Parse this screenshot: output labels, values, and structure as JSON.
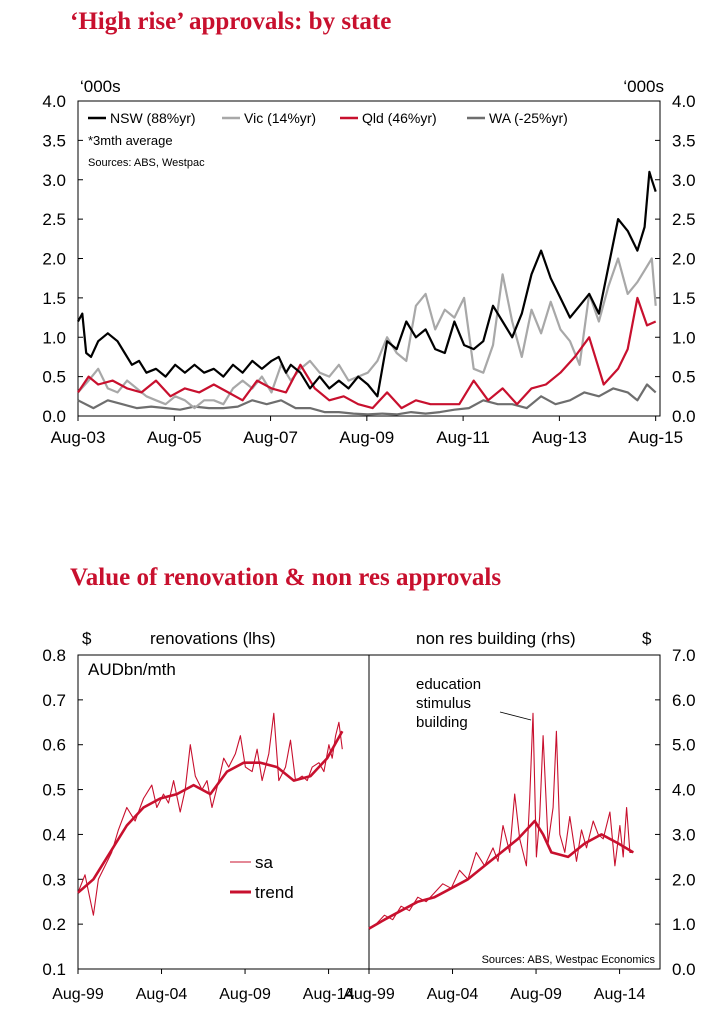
{
  "chart_data": [
    {
      "type": "line",
      "title": "‘High rise’ approvals: by state",
      "ylabel_left": "‘000s",
      "ylabel_right": "‘000s",
      "ylim": [
        0,
        4
      ],
      "yticks": [
        "0.0",
        "0.5",
        "1.0",
        "1.5",
        "2.0",
        "2.5",
        "3.0",
        "3.5",
        "4.0"
      ],
      "xticks": [
        "Aug-03",
        "Aug-05",
        "Aug-07",
        "Aug-09",
        "Aug-11",
        "Aug-13",
        "Aug-15"
      ],
      "xlim": [
        2003.58,
        2015.67
      ],
      "legend": [
        "NSW (88%yr)",
        "Vic (14%yr)",
        "Qld (46%yr)",
        "WA (-25%yr)"
      ],
      "note": "*3mth average",
      "source": "Sources: ABS, Westpac",
      "grid": false,
      "legend_position": "top-left",
      "series": [
        {
          "name": "NSW (88%yr)",
          "color": "#000000",
          "x": [
            2003.58,
            2003.67,
            2003.75,
            2003.85,
            2004.0,
            2004.2,
            2004.4,
            2004.55,
            2004.7,
            2004.85,
            2005.0,
            2005.2,
            2005.4,
            2005.6,
            2005.8,
            2006.0,
            2006.2,
            2006.4,
            2006.6,
            2006.8,
            2007.0,
            2007.2,
            2007.4,
            2007.6,
            2007.75,
            2007.9,
            2008.0,
            2008.2,
            2008.4,
            2008.6,
            2008.8,
            2009.0,
            2009.2,
            2009.4,
            2009.6,
            2009.8,
            2010.0,
            2010.2,
            2010.4,
            2010.6,
            2010.8,
            2011.0,
            2011.2,
            2011.4,
            2011.6,
            2011.8,
            2012.0,
            2012.2,
            2012.4,
            2012.6,
            2012.8,
            2013.0,
            2013.2,
            2013.4,
            2013.6,
            2013.8,
            2014.0,
            2014.2,
            2014.4,
            2014.6,
            2014.8,
            2015.0,
            2015.2,
            2015.35,
            2015.45,
            2015.5,
            2015.58
          ],
          "values": [
            1.2,
            1.3,
            0.8,
            0.75,
            0.95,
            1.05,
            0.95,
            0.8,
            0.65,
            0.7,
            0.55,
            0.6,
            0.5,
            0.65,
            0.55,
            0.65,
            0.55,
            0.6,
            0.5,
            0.65,
            0.55,
            0.7,
            0.6,
            0.7,
            0.75,
            0.55,
            0.65,
            0.55,
            0.35,
            0.5,
            0.35,
            0.45,
            0.35,
            0.5,
            0.4,
            0.25,
            0.95,
            0.85,
            1.2,
            1.0,
            1.1,
            0.85,
            0.8,
            1.2,
            0.9,
            0.85,
            0.95,
            1.4,
            1.2,
            1.0,
            1.3,
            1.8,
            2.1,
            1.75,
            1.5,
            1.25,
            1.4,
            1.55,
            1.3,
            1.9,
            2.5,
            2.35,
            2.1,
            2.4,
            3.1,
            3.0,
            2.85
          ]
        },
        {
          "name": "Vic (14%yr)",
          "color": "#a8a8a8",
          "x": [
            2003.58,
            2003.8,
            2004.0,
            2004.2,
            2004.4,
            2004.6,
            2004.8,
            2005.0,
            2005.2,
            2005.4,
            2005.6,
            2005.8,
            2006.0,
            2006.2,
            2006.4,
            2006.6,
            2006.8,
            2007.0,
            2007.2,
            2007.4,
            2007.6,
            2007.8,
            2008.0,
            2008.2,
            2008.4,
            2008.6,
            2008.8,
            2009.0,
            2009.2,
            2009.4,
            2009.6,
            2009.8,
            2010.0,
            2010.2,
            2010.4,
            2010.6,
            2010.8,
            2011.0,
            2011.2,
            2011.4,
            2011.6,
            2011.8,
            2012.0,
            2012.2,
            2012.4,
            2012.6,
            2012.8,
            2013.0,
            2013.2,
            2013.4,
            2013.6,
            2013.8,
            2014.0,
            2014.2,
            2014.4,
            2014.6,
            2014.8,
            2015.0,
            2015.2,
            2015.35,
            2015.5,
            2015.58
          ],
          "values": [
            0.3,
            0.45,
            0.6,
            0.35,
            0.3,
            0.45,
            0.35,
            0.25,
            0.2,
            0.15,
            0.25,
            0.2,
            0.1,
            0.2,
            0.2,
            0.15,
            0.35,
            0.45,
            0.35,
            0.5,
            0.3,
            0.65,
            0.45,
            0.6,
            0.7,
            0.55,
            0.5,
            0.65,
            0.45,
            0.5,
            0.55,
            0.7,
            1.0,
            0.8,
            0.7,
            1.4,
            1.55,
            1.1,
            1.35,
            1.25,
            1.5,
            0.6,
            0.55,
            0.9,
            1.8,
            1.2,
            0.75,
            1.35,
            1.05,
            1.45,
            1.1,
            0.95,
            0.65,
            1.55,
            1.2,
            1.65,
            2.0,
            1.55,
            1.7,
            1.85,
            2.0,
            1.4
          ]
        },
        {
          "name": "Qld (46%yr)",
          "color": "#c8102e",
          "x": [
            2003.58,
            2003.8,
            2004.0,
            2004.3,
            2004.6,
            2004.9,
            2005.2,
            2005.5,
            2005.8,
            2006.1,
            2006.4,
            2006.7,
            2007.0,
            2007.3,
            2007.6,
            2007.9,
            2008.2,
            2008.5,
            2008.8,
            2009.1,
            2009.4,
            2009.7,
            2010.0,
            2010.3,
            2010.6,
            2010.9,
            2011.2,
            2011.5,
            2011.8,
            2012.1,
            2012.4,
            2012.7,
            2013.0,
            2013.3,
            2013.6,
            2013.9,
            2014.2,
            2014.5,
            2014.8,
            2015.0,
            2015.2,
            2015.4,
            2015.58
          ],
          "values": [
            0.3,
            0.5,
            0.4,
            0.45,
            0.35,
            0.3,
            0.45,
            0.25,
            0.35,
            0.3,
            0.4,
            0.3,
            0.2,
            0.45,
            0.35,
            0.3,
            0.65,
            0.35,
            0.2,
            0.25,
            0.15,
            0.1,
            0.3,
            0.1,
            0.2,
            0.15,
            0.15,
            0.15,
            0.45,
            0.2,
            0.35,
            0.15,
            0.35,
            0.4,
            0.55,
            0.75,
            1.0,
            0.4,
            0.6,
            0.85,
            1.5,
            1.15,
            1.2
          ]
        },
        {
          "name": "WA (-25%yr)",
          "color": "#6e6e6e",
          "x": [
            2003.58,
            2003.9,
            2004.2,
            2004.5,
            2004.8,
            2005.1,
            2005.4,
            2005.7,
            2006.0,
            2006.3,
            2006.6,
            2006.9,
            2007.2,
            2007.5,
            2007.8,
            2008.1,
            2008.4,
            2008.7,
            2009.0,
            2009.3,
            2009.6,
            2009.9,
            2010.2,
            2010.5,
            2010.8,
            2011.1,
            2011.4,
            2011.7,
            2012.0,
            2012.3,
            2012.6,
            2012.9,
            2013.2,
            2013.5,
            2013.8,
            2014.1,
            2014.4,
            2014.7,
            2015.0,
            2015.2,
            2015.4,
            2015.58
          ],
          "values": [
            0.2,
            0.1,
            0.2,
            0.15,
            0.1,
            0.12,
            0.1,
            0.08,
            0.12,
            0.1,
            0.1,
            0.12,
            0.2,
            0.15,
            0.2,
            0.1,
            0.1,
            0.05,
            0.05,
            0.03,
            0.02,
            0.03,
            0.02,
            0.05,
            0.03,
            0.05,
            0.08,
            0.1,
            0.2,
            0.15,
            0.15,
            0.1,
            0.25,
            0.15,
            0.2,
            0.3,
            0.25,
            0.35,
            0.3,
            0.2,
            0.4,
            0.3
          ]
        }
      ]
    },
    {
      "type": "line",
      "title": "Value of renovation & non res approvals",
      "left_panel": {
        "header_unit": "$",
        "header_label": "renovations (lhs)",
        "unit_label": "AUDbn/mth",
        "ylim": [
          0.1,
          0.8
        ],
        "yticks": [
          "0.1",
          "0.2",
          "0.3",
          "0.4",
          "0.5",
          "0.6",
          "0.7",
          "0.8"
        ],
        "xticks": [
          "Aug-99",
          "Aug-04",
          "Aug-09",
          "Aug-14"
        ],
        "xlim": [
          1999.58,
          2017.0
        ],
        "legend": [
          "sa",
          "trend"
        ],
        "legend_position": "center",
        "series": [
          {
            "name": "sa",
            "color": "#c8102e",
            "x": [
              1999.58,
              2000.0,
              2000.5,
              2000.8,
              2001.2,
              2001.6,
              2002.0,
              2002.5,
              2003.0,
              2003.5,
              2004.0,
              2004.3,
              2004.7,
              2005.0,
              2005.3,
              2005.7,
              2006.0,
              2006.3,
              2006.6,
              2007.0,
              2007.3,
              2007.6,
              2008.0,
              2008.3,
              2008.6,
              2009.0,
              2009.3,
              2009.6,
              2010.0,
              2010.3,
              2010.6,
              2011.0,
              2011.3,
              2011.6,
              2012.0,
              2012.3,
              2012.6,
              2013.0,
              2013.3,
              2013.6,
              2014.0,
              2014.3,
              2014.6,
              2014.8,
              2015.0,
              2015.2,
              2015.4
            ],
            "values": [
              0.27,
              0.31,
              0.22,
              0.3,
              0.33,
              0.36,
              0.41,
              0.46,
              0.43,
              0.48,
              0.51,
              0.46,
              0.49,
              0.47,
              0.52,
              0.45,
              0.5,
              0.6,
              0.53,
              0.5,
              0.52,
              0.46,
              0.52,
              0.57,
              0.55,
              0.58,
              0.62,
              0.55,
              0.54,
              0.59,
              0.52,
              0.58,
              0.67,
              0.52,
              0.55,
              0.61,
              0.52,
              0.53,
              0.52,
              0.55,
              0.56,
              0.54,
              0.6,
              0.57,
              0.62,
              0.65,
              0.59
            ]
          },
          {
            "name": "trend",
            "color": "#c8102e",
            "x": [
              1999.58,
              2000.5,
              2001.5,
              2002.5,
              2003.5,
              2004.5,
              2005.5,
              2006.5,
              2007.5,
              2008.5,
              2009.5,
              2010.5,
              2011.5,
              2012.5,
              2013.5,
              2014.5,
              2015.4
            ],
            "values": [
              0.27,
              0.3,
              0.36,
              0.42,
              0.46,
              0.48,
              0.49,
              0.51,
              0.49,
              0.54,
              0.56,
              0.56,
              0.55,
              0.52,
              0.53,
              0.57,
              0.63
            ]
          }
        ]
      },
      "right_panel": {
        "header_label": "non res building (rhs)",
        "header_unit": "$",
        "ylim": [
          0.0,
          7.0
        ],
        "yticks": [
          "0.0",
          "1.0",
          "2.0",
          "3.0",
          "4.0",
          "5.0",
          "6.0",
          "7.0"
        ],
        "xticks": [
          "Aug-99",
          "Aug-04",
          "Aug-09",
          "Aug-14"
        ],
        "xlim": [
          1999.58,
          2017.0
        ],
        "annotation": "education stimulus building",
        "annotation_lines": [
          "education",
          "stimulus",
          "building"
        ],
        "source": "Sources: ABS, Westpac Economics",
        "series": [
          {
            "name": "sa",
            "color": "#c8102e",
            "x": [
              1999.58,
              2000.0,
              2000.5,
              2001.0,
              2001.5,
              2002.0,
              2002.5,
              2003.0,
              2003.5,
              2004.0,
              2004.5,
              2005.0,
              2005.5,
              2006.0,
              2006.5,
              2007.0,
              2007.3,
              2007.6,
              2008.0,
              2008.3,
              2008.6,
              2009.0,
              2009.2,
              2009.4,
              2009.6,
              2009.8,
              2010.0,
              2010.3,
              2010.6,
              2010.8,
              2011.0,
              2011.3,
              2011.6,
              2012.0,
              2012.3,
              2012.6,
              2013.0,
              2013.3,
              2013.6,
              2014.0,
              2014.3,
              2014.6,
              2014.8,
              2015.0,
              2015.2,
              2015.4
            ],
            "values": [
              0.9,
              1.0,
              1.2,
              1.1,
              1.4,
              1.3,
              1.6,
              1.5,
              1.7,
              1.9,
              1.8,
              2.2,
              2.0,
              2.6,
              2.3,
              2.7,
              2.4,
              3.2,
              2.6,
              3.9,
              2.9,
              2.3,
              3.8,
              5.7,
              2.5,
              3.4,
              5.2,
              2.8,
              3.6,
              5.3,
              3.0,
              2.6,
              3.4,
              2.4,
              3.1,
              2.7,
              3.3,
              3.0,
              2.9,
              3.5,
              2.3,
              3.2,
              2.5,
              3.6,
              2.6,
              2.6
            ]
          },
          {
            "name": "trend",
            "color": "#c8102e",
            "x": [
              1999.58,
              2000.5,
              2001.5,
              2002.5,
              2003.5,
              2004.5,
              2005.5,
              2006.5,
              2007.5,
              2008.5,
              2009.5,
              2010.0,
              2010.5,
              2011.5,
              2012.5,
              2013.5,
              2014.5,
              2015.4
            ],
            "values": [
              0.9,
              1.1,
              1.3,
              1.5,
              1.6,
              1.8,
              2.0,
              2.3,
              2.6,
              2.9,
              3.3,
              3.0,
              2.6,
              2.5,
              2.8,
              3.0,
              2.8,
              2.6
            ]
          }
        ]
      }
    }
  ]
}
